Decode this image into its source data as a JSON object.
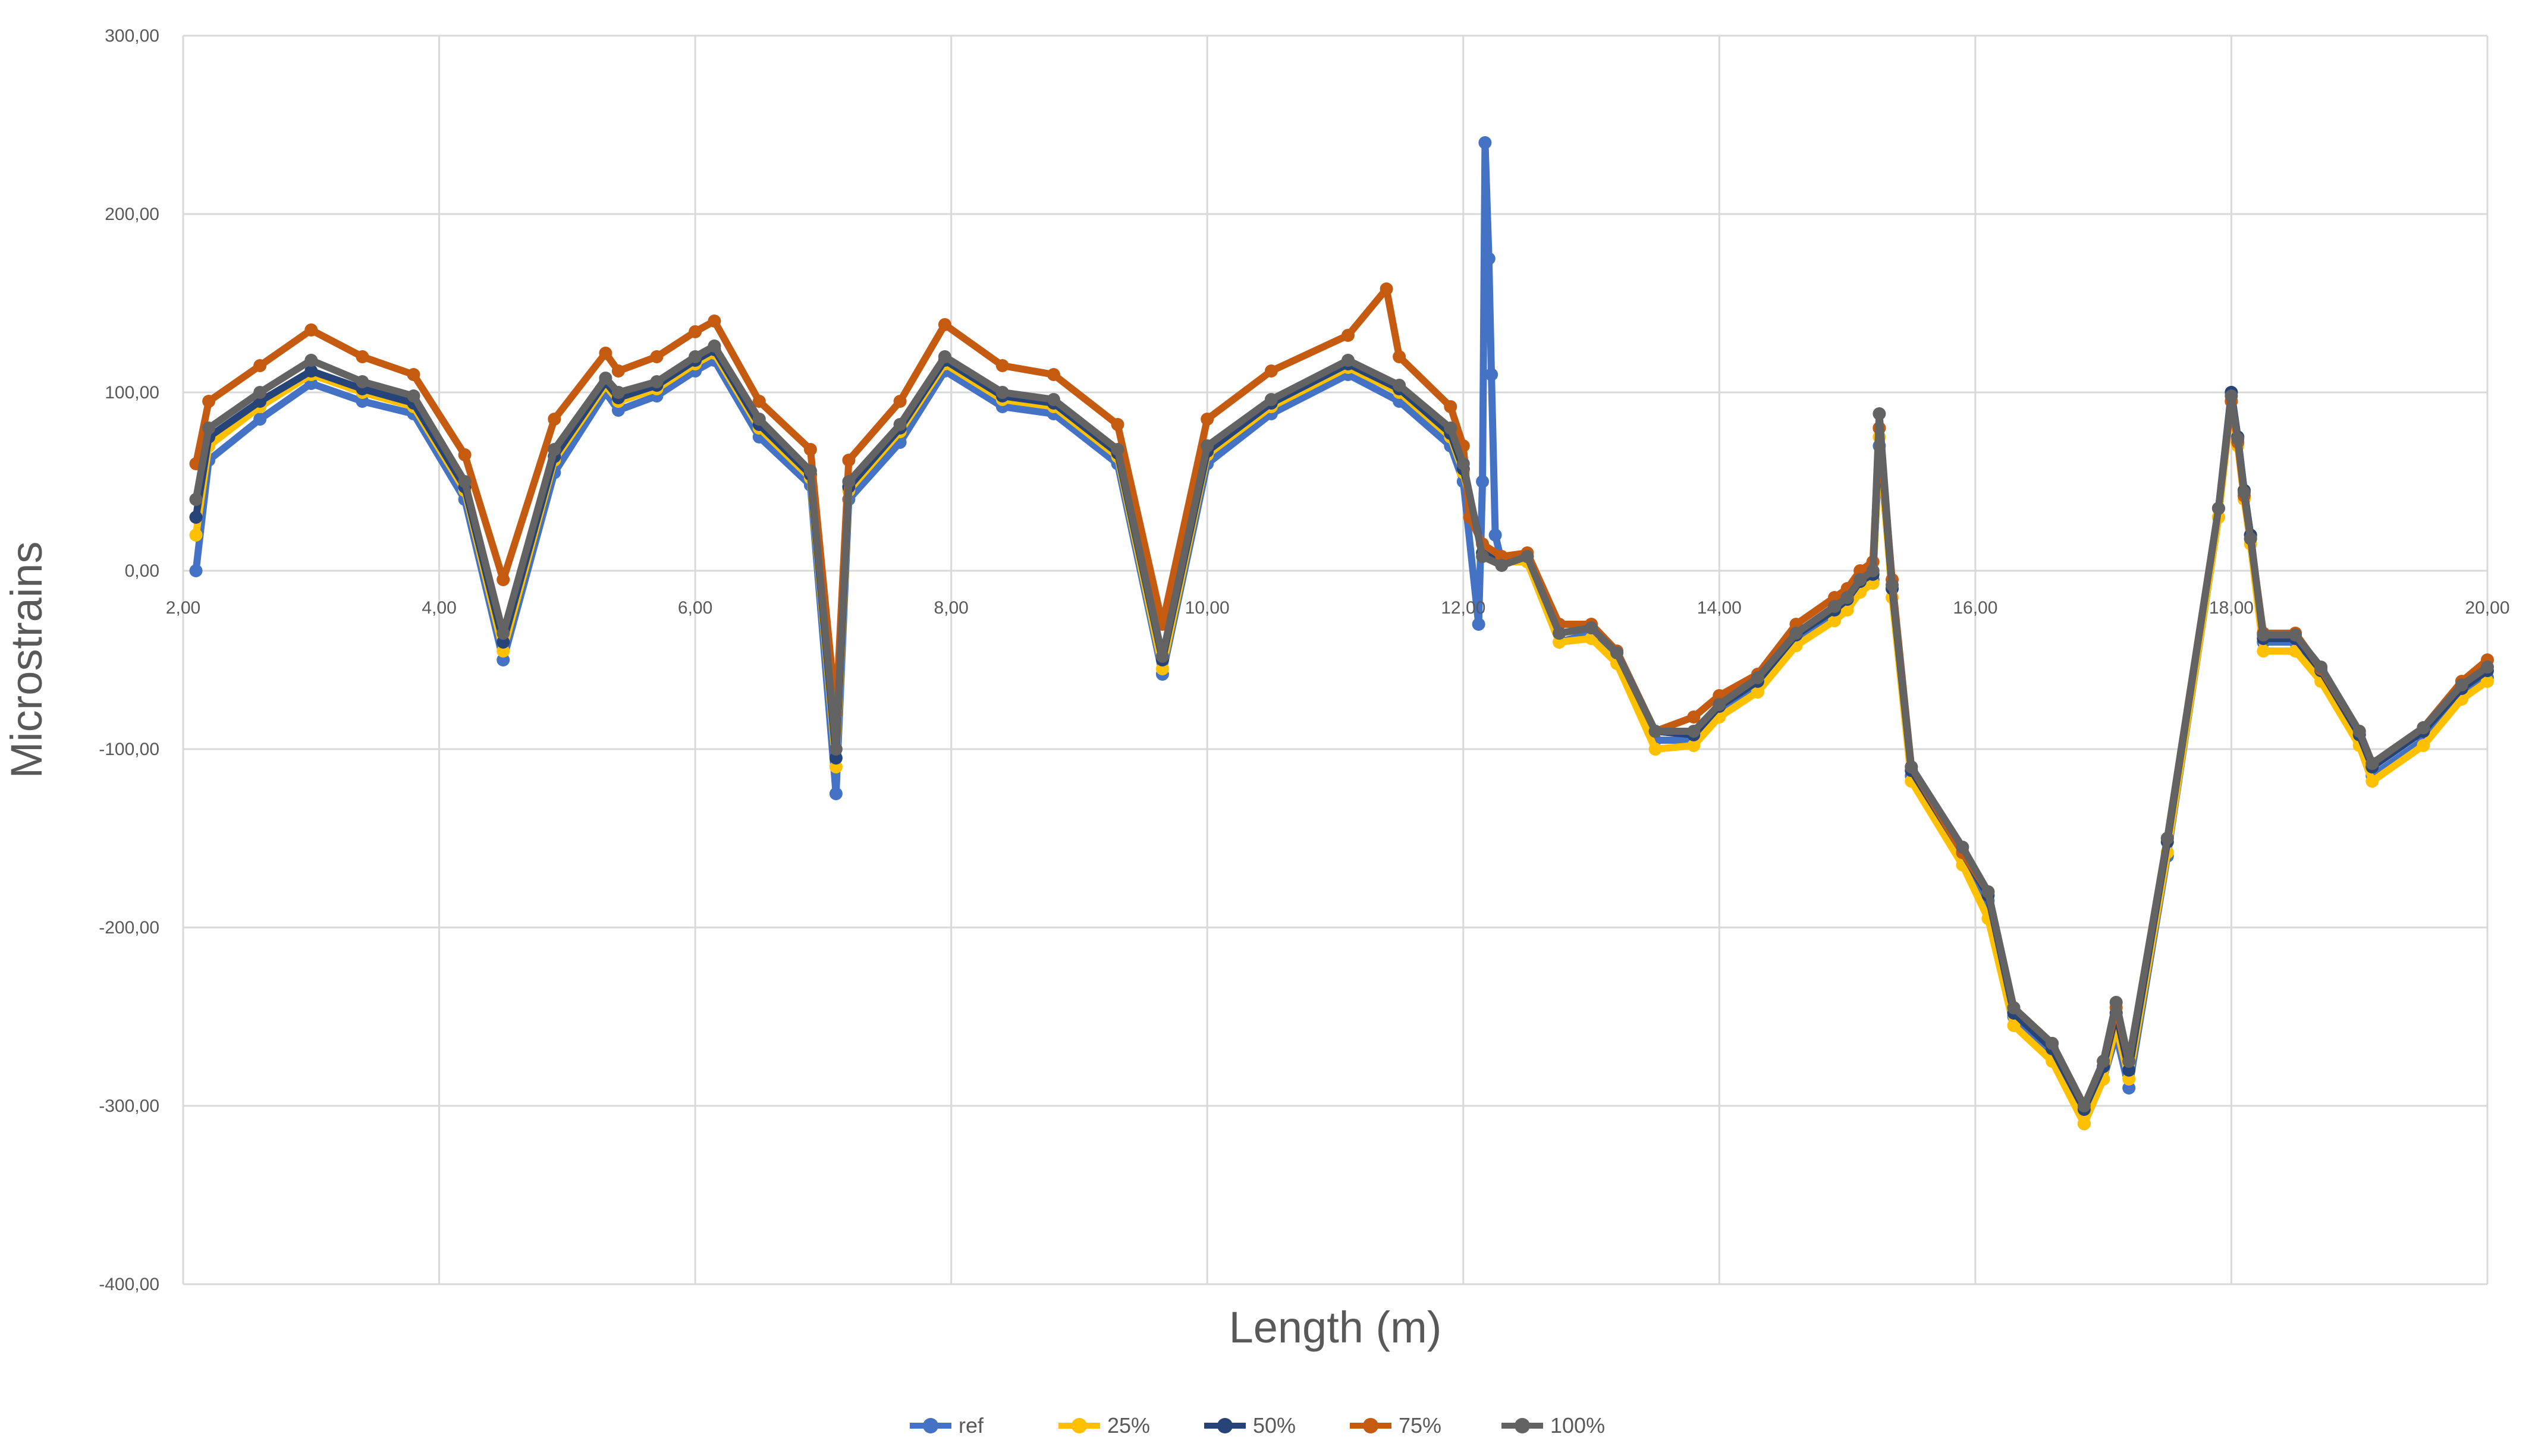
{
  "chart_data": {
    "type": "line",
    "title": "",
    "xlabel": "Length (m)",
    "ylabel": "Microstrains",
    "xlim": [
      2.0,
      20.0
    ],
    "ylim": [
      -400,
      300
    ],
    "x_ticks": [
      2,
      4,
      6,
      8,
      10,
      12,
      14,
      16,
      18,
      20
    ],
    "y_ticks": [
      300,
      200,
      100,
      0,
      -100,
      -200,
      -300,
      -400
    ],
    "x_tick_labels": [
      "2,00",
      "4,00",
      "6,00",
      "8,00",
      "10,00",
      "12,00",
      "14,00",
      "16,00",
      "18,00",
      "20,00"
    ],
    "y_tick_labels": [
      "300,00",
      "200,00",
      "100,00",
      "0,00",
      "-100,00",
      "-200,00",
      "-300,00",
      "-400,00"
    ],
    "grid": true,
    "legend_position": "bottom",
    "series": [
      {
        "name": "ref",
        "color": "#4472C4",
        "x": [
          2.1,
          2.2,
          2.6,
          3.0,
          3.4,
          3.8,
          4.2,
          4.5,
          4.9,
          5.3,
          5.4,
          5.7,
          6.0,
          6.15,
          6.5,
          6.9,
          7.1,
          7.2,
          7.6,
          7.95,
          8.4,
          8.8,
          9.3,
          9.65,
          10.0,
          10.5,
          11.1,
          11.5,
          11.9,
          12.0,
          12.12,
          12.15,
          12.17,
          12.2,
          12.22,
          12.25,
          12.3,
          12.5,
          12.75,
          13.0,
          13.2,
          13.5,
          13.8,
          14.0,
          14.3,
          14.6,
          14.9,
          15.0,
          15.1,
          15.2,
          15.25,
          15.35,
          15.5,
          15.9,
          16.1,
          16.3,
          16.6,
          16.85,
          17.0,
          17.1,
          17.2,
          17.5,
          17.9,
          18.0,
          18.05,
          18.1,
          18.15,
          18.25,
          18.5,
          18.7,
          19.0,
          19.1,
          19.5,
          19.8,
          20.0
        ],
        "values": [
          0,
          62,
          85,
          105,
          95,
          88,
          40,
          -50,
          55,
          100,
          90,
          98,
          112,
          118,
          75,
          48,
          -125,
          40,
          72,
          112,
          92,
          88,
          60,
          -58,
          60,
          88,
          110,
          95,
          70,
          50,
          -30,
          50,
          240,
          175,
          110,
          20,
          5,
          5,
          -40,
          -35,
          -50,
          -95,
          -95,
          -80,
          -65,
          -40,
          -25,
          -20,
          -10,
          -5,
          70,
          -10,
          -115,
          -160,
          -185,
          -250,
          -270,
          -310,
          -285,
          -260,
          -290,
          -160,
          30,
          100,
          75,
          45,
          20,
          -40,
          -40,
          -60,
          -95,
          -115,
          -95,
          -70,
          -60
        ]
      },
      {
        "name": "25%",
        "color": "#FFC000",
        "x": [
          2.1,
          2.2,
          2.6,
          3.0,
          3.4,
          3.8,
          4.2,
          4.5,
          4.9,
          5.3,
          5.4,
          5.7,
          6.0,
          6.15,
          6.5,
          6.9,
          7.1,
          7.2,
          7.6,
          7.95,
          8.4,
          8.8,
          9.3,
          9.65,
          10.0,
          10.5,
          11.1,
          11.5,
          11.9,
          12.0,
          12.15,
          12.3,
          12.5,
          12.75,
          13.0,
          13.2,
          13.5,
          13.8,
          14.0,
          14.3,
          14.6,
          14.9,
          15.0,
          15.1,
          15.2,
          15.25,
          15.35,
          15.5,
          15.9,
          16.1,
          16.3,
          16.6,
          16.85,
          17.0,
          17.1,
          17.2,
          17.5,
          17.9,
          18.0,
          18.05,
          18.1,
          18.15,
          18.25,
          18.5,
          18.7,
          19.0,
          19.1,
          19.5,
          19.8,
          20.0
        ],
        "values": [
          20,
          70,
          92,
          110,
          100,
          92,
          45,
          -45,
          62,
          104,
          95,
          102,
          116,
          122,
          80,
          52,
          -110,
          45,
          78,
          116,
          96,
          92,
          64,
          -55,
          65,
          92,
          114,
          100,
          75,
          55,
          10,
          5,
          5,
          -40,
          -38,
          -52,
          -100,
          -98,
          -82,
          -68,
          -42,
          -28,
          -22,
          -12,
          -7,
          75,
          -15,
          -118,
          -165,
          -195,
          -255,
          -275,
          -310,
          -285,
          -255,
          -285,
          -158,
          30,
          95,
          70,
          40,
          15,
          -45,
          -45,
          -62,
          -98,
          -118,
          -98,
          -72,
          -62
        ]
      },
      {
        "name": "50%",
        "color": "#264478",
        "x": [
          2.1,
          2.2,
          2.6,
          3.0,
          3.4,
          3.8,
          4.2,
          4.5,
          4.9,
          5.3,
          5.4,
          5.7,
          6.0,
          6.15,
          6.5,
          6.9,
          7.1,
          7.2,
          7.6,
          7.95,
          8.4,
          8.8,
          9.3,
          9.65,
          10.0,
          10.5,
          11.1,
          11.5,
          11.9,
          12.0,
          12.15,
          12.3,
          12.5,
          12.75,
          13.0,
          13.2,
          13.5,
          13.8,
          14.0,
          14.3,
          14.6,
          14.9,
          15.0,
          15.1,
          15.2,
          15.25,
          15.35,
          15.5,
          15.9,
          16.1,
          16.3,
          16.6,
          16.85,
          17.0,
          17.1,
          17.2,
          17.5,
          17.9,
          18.0,
          18.05,
          18.1,
          18.15,
          18.25,
          18.5,
          18.7,
          19.0,
          19.1,
          19.5,
          19.8,
          20.0
        ],
        "values": [
          30,
          75,
          95,
          112,
          102,
          94,
          47,
          -40,
          64,
          106,
          97,
          104,
          118,
          124,
          82,
          54,
          -105,
          47,
          80,
          118,
          98,
          94,
          66,
          -50,
          67,
          94,
          116,
          102,
          77,
          57,
          10,
          5,
          8,
          -35,
          -32,
          -46,
          -90,
          -92,
          -76,
          -62,
          -36,
          -22,
          -16,
          -6,
          -2,
          80,
          -10,
          -112,
          -158,
          -182,
          -248,
          -268,
          -302,
          -278,
          -248,
          -280,
          -152,
          35,
          100,
          75,
          45,
          20,
          -38,
          -38,
          -56,
          -92,
          -110,
          -90,
          -66,
          -56
        ]
      },
      {
        "name": "75%",
        "color": "#C55A11",
        "x": [
          2.1,
          2.2,
          2.6,
          3.0,
          3.4,
          3.8,
          4.2,
          4.5,
          4.9,
          5.3,
          5.4,
          5.7,
          6.0,
          6.15,
          6.5,
          6.9,
          7.1,
          7.2,
          7.6,
          7.95,
          8.4,
          8.8,
          9.3,
          9.65,
          10.0,
          10.5,
          11.1,
          11.4,
          11.5,
          11.9,
          12.0,
          12.05,
          12.15,
          12.3,
          12.5,
          12.75,
          13.0,
          13.2,
          13.5,
          13.8,
          14.0,
          14.3,
          14.6,
          14.9,
          15.0,
          15.1,
          15.2,
          15.25,
          15.35,
          15.5,
          15.9,
          16.1,
          16.3,
          16.6,
          16.85,
          17.0,
          17.1,
          17.2,
          17.5,
          17.9,
          18.0,
          18.05,
          18.1,
          18.15,
          18.25,
          18.5,
          18.7,
          19.0,
          19.1,
          19.5,
          19.8,
          20.0
        ],
        "values": [
          60,
          95,
          115,
          135,
          120,
          110,
          65,
          -5,
          85,
          122,
          112,
          120,
          134,
          140,
          95,
          68,
          -80,
          62,
          95,
          138,
          115,
          110,
          82,
          -30,
          85,
          112,
          132,
          158,
          120,
          92,
          70,
          30,
          15,
          8,
          10,
          -30,
          -30,
          -45,
          -90,
          -82,
          -70,
          -58,
          -30,
          -15,
          -10,
          0,
          5,
          80,
          -5,
          -110,
          -158,
          -180,
          -245,
          -265,
          -300,
          -275,
          -245,
          -275,
          -150,
          35,
          95,
          72,
          42,
          18,
          -35,
          -35,
          -55,
          -90,
          -108,
          -88,
          -62,
          -50
        ]
      },
      {
        "name": "100%",
        "color": "#636363",
        "x": [
          2.1,
          2.2,
          2.6,
          3.0,
          3.4,
          3.8,
          4.2,
          4.5,
          4.9,
          5.3,
          5.4,
          5.7,
          6.0,
          6.15,
          6.5,
          6.9,
          7.1,
          7.2,
          7.6,
          7.95,
          8.4,
          8.8,
          9.3,
          9.65,
          10.0,
          10.5,
          11.1,
          11.5,
          11.9,
          12.0,
          12.15,
          12.3,
          12.5,
          12.75,
          13.0,
          13.2,
          13.5,
          13.8,
          14.0,
          14.3,
          14.6,
          14.9,
          15.0,
          15.1,
          15.2,
          15.25,
          15.35,
          15.5,
          15.9,
          16.1,
          16.3,
          16.6,
          16.85,
          17.0,
          17.1,
          17.2,
          17.5,
          17.9,
          18.0,
          18.05,
          18.1,
          18.15,
          18.25,
          18.5,
          18.7,
          19.0,
          19.1,
          19.5,
          19.8,
          20.0
        ],
        "values": [
          40,
          80,
          100,
          118,
          106,
          98,
          50,
          -35,
          68,
          108,
          100,
          106,
          120,
          126,
          85,
          56,
          -100,
          50,
          82,
          120,
          100,
          96,
          68,
          -48,
          70,
          96,
          118,
          104,
          80,
          60,
          8,
          3,
          8,
          -35,
          -32,
          -46,
          -90,
          -90,
          -75,
          -60,
          -35,
          -20,
          -15,
          -5,
          0,
          88,
          -8,
          -110,
          -155,
          -180,
          -245,
          -265,
          -300,
          -275,
          -242,
          -275,
          -150,
          35,
          98,
          74,
          44,
          18,
          -36,
          -36,
          -54,
          -90,
          -108,
          -88,
          -64,
          -54
        ]
      }
    ]
  }
}
